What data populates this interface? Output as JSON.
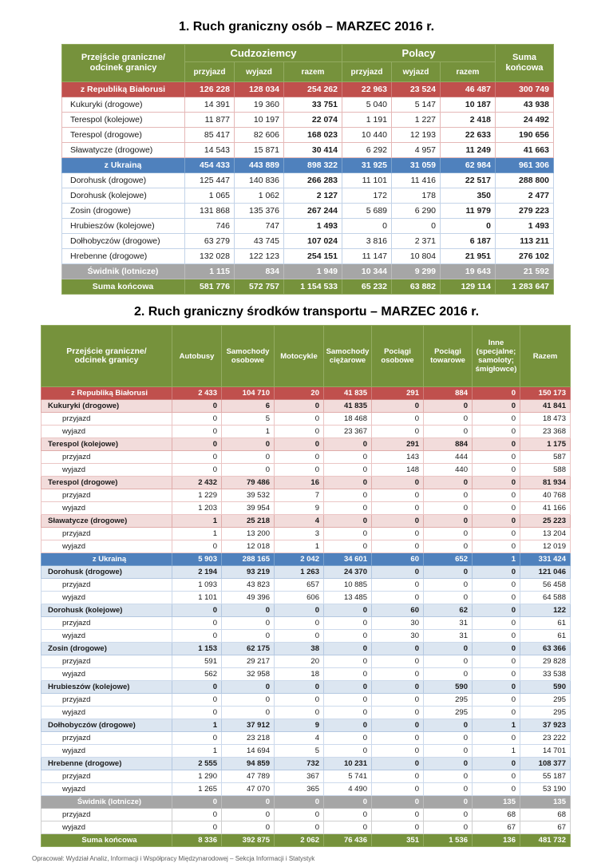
{
  "page": {
    "footer_note": "Opracował: Wydział Analiz, Informacji i Współpracy Międzynarodowej – Sekcja Informacji i Statystyk"
  },
  "colors": {
    "header_green": "#76923C",
    "belarus_section_red": "#C0504D",
    "belarus_group_pink": "#F2DCDB",
    "belarus_grid_pink": "#E5B8B7",
    "ukraine_section_blue": "#4F81BD",
    "ukraine_group_blue": "#DCE6F1",
    "ukraine_grid_blue": "#C3D3E8",
    "swidnik_gray": "#A6A6A6",
    "section_text": "#FFFFFF"
  },
  "table1": {
    "title": "1. Ruch graniczny osób – MARZEC 2016 r.",
    "header": {
      "col1": "Przejście graniczne/\nodcinek granicy",
      "group1": "Cudzoziemcy",
      "group2": "Polacy",
      "sub": [
        "przyjazd",
        "wyjazd",
        "razem",
        "przyjazd",
        "wyjazd",
        "razem"
      ],
      "suma": "Suma\nkońcowa"
    },
    "rows": [
      {
        "label": "z Republiką Białorusi",
        "type": "sec-red",
        "values": [
          "126 228",
          "128 034",
          "254 262",
          "22 963",
          "23 524",
          "46 487",
          "300 749"
        ]
      },
      {
        "label": "Kukuryki (drogowe)",
        "type": "plain-pink",
        "values": [
          "14 391",
          "19 360",
          "33 751",
          "5 040",
          "5 147",
          "10 187",
          "43 938"
        ]
      },
      {
        "label": "Terespol (kolejowe)",
        "type": "plain-pink",
        "values": [
          "11 877",
          "10 197",
          "22 074",
          "1 191",
          "1 227",
          "2 418",
          "24 492"
        ]
      },
      {
        "label": "Terespol (drogowe)",
        "type": "plain-pink",
        "values": [
          "85 417",
          "82 606",
          "168 023",
          "10 440",
          "12 193",
          "22 633",
          "190 656"
        ]
      },
      {
        "label": "Sławatycze (drogowe)",
        "type": "plain-pink",
        "values": [
          "14 543",
          "15 871",
          "30 414",
          "6 292",
          "4 957",
          "11 249",
          "41 663"
        ]
      },
      {
        "label": "z Ukrainą",
        "type": "sec-blue",
        "values": [
          "454 433",
          "443 889",
          "898 322",
          "31 925",
          "31 059",
          "62 984",
          "961 306"
        ]
      },
      {
        "label": "Dorohusk (drogowe)",
        "type": "plain-blue",
        "values": [
          "125 447",
          "140 836",
          "266 283",
          "11 101",
          "11 416",
          "22 517",
          "288 800"
        ]
      },
      {
        "label": "Dorohusk (kolejowe)",
        "type": "plain-blue",
        "values": [
          "1 065",
          "1 062",
          "2 127",
          "172",
          "178",
          "350",
          "2 477"
        ]
      },
      {
        "label": "Zosin (drogowe)",
        "type": "plain-blue",
        "values": [
          "131 868",
          "135 376",
          "267 244",
          "5 689",
          "6 290",
          "11 979",
          "279 223"
        ]
      },
      {
        "label": "Hrubieszów (kolejowe)",
        "type": "plain-blue",
        "values": [
          "746",
          "747",
          "1 493",
          "0",
          "0",
          "0",
          "1 493"
        ]
      },
      {
        "label": "Dołhobyczów (drogowe)",
        "type": "plain-blue",
        "values": [
          "63 279",
          "43 745",
          "107 024",
          "3 816",
          "2 371",
          "6 187",
          "113 211"
        ]
      },
      {
        "label": "Hrebenne (drogowe)",
        "type": "plain-blue",
        "values": [
          "132 028",
          "122 123",
          "254 151",
          "11 147",
          "10 804",
          "21 951",
          "276 102"
        ]
      },
      {
        "label": "Świdnik (lotnicze)",
        "type": "sec-gray",
        "values": [
          "1 115",
          "834",
          "1 949",
          "10 344",
          "9 299",
          "19 643",
          "21 592"
        ]
      },
      {
        "label": "Suma końcowa",
        "type": "grand",
        "values": [
          "581 776",
          "572 757",
          "1 154 533",
          "65 232",
          "63 882",
          "129 114",
          "1 283 647"
        ]
      }
    ]
  },
  "table2": {
    "title": "2. Ruch graniczny środków transportu – MARZEC 2016 r.",
    "headers": [
      "Przejście graniczne/\nodcinek granicy",
      "Autobusy",
      "Samochody\nosobowe",
      "Motocykle",
      "Samochody\nciężarowe",
      "Pociągi\nosobowe",
      "Pociągi\ntowarowe",
      "Inne\n(specjalne;\nsamoloty;\nśmigłowce)",
      "Razem"
    ],
    "rows": [
      {
        "label": "z Republiką Białorusi",
        "type": "sec-red",
        "values": [
          "2 433",
          "104 710",
          "20",
          "41 835",
          "291",
          "884",
          "0",
          "150 173"
        ]
      },
      {
        "label": "Kukuryki (drogowe)",
        "type": "group-pink",
        "values": [
          "0",
          "6",
          "0",
          "41 835",
          "0",
          "0",
          "0",
          "41 841"
        ]
      },
      {
        "label": "przyjazd",
        "type": "det-pink",
        "values": [
          "0",
          "5",
          "0",
          "18 468",
          "0",
          "0",
          "0",
          "18 473"
        ]
      },
      {
        "label": "wyjazd",
        "type": "det-pink",
        "values": [
          "0",
          "1",
          "0",
          "23 367",
          "0",
          "0",
          "0",
          "23 368"
        ]
      },
      {
        "label": "Terespol (kolejowe)",
        "type": "group-pink",
        "values": [
          "0",
          "0",
          "0",
          "0",
          "291",
          "884",
          "0",
          "1 175"
        ]
      },
      {
        "label": "przyjazd",
        "type": "det-pink",
        "values": [
          "0",
          "0",
          "0",
          "0",
          "143",
          "444",
          "0",
          "587"
        ]
      },
      {
        "label": "wyjazd",
        "type": "det-pink",
        "values": [
          "0",
          "0",
          "0",
          "0",
          "148",
          "440",
          "0",
          "588"
        ]
      },
      {
        "label": "Terespol (drogowe)",
        "type": "group-pink",
        "values": [
          "2 432",
          "79 486",
          "16",
          "0",
          "0",
          "0",
          "0",
          "81 934"
        ]
      },
      {
        "label": "przyjazd",
        "type": "det-pink",
        "values": [
          "1 229",
          "39 532",
          "7",
          "0",
          "0",
          "0",
          "0",
          "40 768"
        ]
      },
      {
        "label": "wyjazd",
        "type": "det-pink",
        "values": [
          "1 203",
          "39 954",
          "9",
          "0",
          "0",
          "0",
          "0",
          "41 166"
        ]
      },
      {
        "label": "Sławatycze (drogowe)",
        "type": "group-pink",
        "values": [
          "1",
          "25 218",
          "4",
          "0",
          "0",
          "0",
          "0",
          "25 223"
        ]
      },
      {
        "label": "przyjazd",
        "type": "det-pink",
        "values": [
          "1",
          "13 200",
          "3",
          "0",
          "0",
          "0",
          "0",
          "13 204"
        ]
      },
      {
        "label": "wyjazd",
        "type": "det-pink",
        "values": [
          "0",
          "12 018",
          "1",
          "0",
          "0",
          "0",
          "0",
          "12 019"
        ]
      },
      {
        "label": "z Ukrainą",
        "type": "sec-blue",
        "values": [
          "5 903",
          "288 165",
          "2 042",
          "34 601",
          "60",
          "652",
          "1",
          "331 424"
        ]
      },
      {
        "label": "Dorohusk (drogowe)",
        "type": "group-blue",
        "values": [
          "2 194",
          "93 219",
          "1 263",
          "24 370",
          "0",
          "0",
          "0",
          "121 046"
        ]
      },
      {
        "label": "przyjazd",
        "type": "det-blue",
        "values": [
          "1 093",
          "43 823",
          "657",
          "10 885",
          "0",
          "0",
          "0",
          "56 458"
        ]
      },
      {
        "label": "wyjazd",
        "type": "det-blue",
        "values": [
          "1 101",
          "49 396",
          "606",
          "13 485",
          "0",
          "0",
          "0",
          "64 588"
        ]
      },
      {
        "label": "Dorohusk (kolejowe)",
        "type": "group-blue",
        "values": [
          "0",
          "0",
          "0",
          "0",
          "60",
          "62",
          "0",
          "122"
        ]
      },
      {
        "label": "przyjazd",
        "type": "det-blue",
        "values": [
          "0",
          "0",
          "0",
          "0",
          "30",
          "31",
          "0",
          "61"
        ]
      },
      {
        "label": "wyjazd",
        "type": "det-blue",
        "values": [
          "0",
          "0",
          "0",
          "0",
          "30",
          "31",
          "0",
          "61"
        ]
      },
      {
        "label": "Zosin (drogowe)",
        "type": "group-blue",
        "values": [
          "1 153",
          "62 175",
          "38",
          "0",
          "0",
          "0",
          "0",
          "63 366"
        ]
      },
      {
        "label": "przyjazd",
        "type": "det-blue",
        "values": [
          "591",
          "29 217",
          "20",
          "0",
          "0",
          "0",
          "0",
          "29 828"
        ]
      },
      {
        "label": "wyjazd",
        "type": "det-blue",
        "values": [
          "562",
          "32 958",
          "18",
          "0",
          "0",
          "0",
          "0",
          "33 538"
        ]
      },
      {
        "label": "Hrubieszów (kolejowe)",
        "type": "group-blue",
        "values": [
          "0",
          "0",
          "0",
          "0",
          "0",
          "590",
          "0",
          "590"
        ]
      },
      {
        "label": "przyjazd",
        "type": "det-blue",
        "values": [
          "0",
          "0",
          "0",
          "0",
          "0",
          "295",
          "0",
          "295"
        ]
      },
      {
        "label": "wyjazd",
        "type": "det-blue",
        "values": [
          "0",
          "0",
          "0",
          "0",
          "0",
          "295",
          "0",
          "295"
        ]
      },
      {
        "label": "Dołhobyczów (drogowe)",
        "type": "group-blue",
        "values": [
          "1",
          "37 912",
          "9",
          "0",
          "0",
          "0",
          "1",
          "37 923"
        ]
      },
      {
        "label": "przyjazd",
        "type": "det-blue",
        "values": [
          "0",
          "23 218",
          "4",
          "0",
          "0",
          "0",
          "0",
          "23 222"
        ]
      },
      {
        "label": "wyjazd",
        "type": "det-blue",
        "values": [
          "1",
          "14 694",
          "5",
          "0",
          "0",
          "0",
          "1",
          "14 701"
        ]
      },
      {
        "label": "Hrebenne (drogowe)",
        "type": "group-blue",
        "values": [
          "2 555",
          "94 859",
          "732",
          "10 231",
          "0",
          "0",
          "0",
          "108 377"
        ]
      },
      {
        "label": "przyjazd",
        "type": "det-blue",
        "values": [
          "1 290",
          "47 789",
          "367",
          "5 741",
          "0",
          "0",
          "0",
          "55 187"
        ]
      },
      {
        "label": "wyjazd",
        "type": "det-blue",
        "values": [
          "1 265",
          "47 070",
          "365",
          "4 490",
          "0",
          "0",
          "0",
          "53 190"
        ]
      },
      {
        "label": "Świdnik (lotnicze)",
        "type": "sec-gray",
        "values": [
          "0",
          "0",
          "0",
          "0",
          "0",
          "0",
          "135",
          "135"
        ]
      },
      {
        "label": "przyjazd",
        "type": "det-gray",
        "values": [
          "0",
          "0",
          "0",
          "0",
          "0",
          "0",
          "68",
          "68"
        ]
      },
      {
        "label": "wyjazd",
        "type": "det-gray",
        "values": [
          "0",
          "0",
          "0",
          "0",
          "0",
          "0",
          "67",
          "67"
        ]
      },
      {
        "label": "Suma końcowa",
        "type": "grand",
        "values": [
          "8 336",
          "392 875",
          "2 062",
          "76 436",
          "351",
          "1 536",
          "136",
          "481 732"
        ]
      }
    ]
  }
}
